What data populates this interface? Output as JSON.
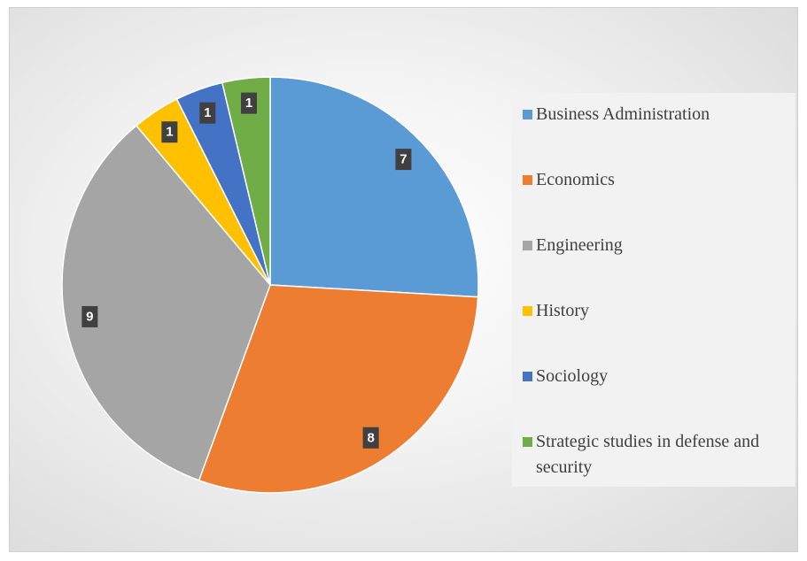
{
  "chart_data": {
    "type": "pie",
    "categories": [
      "Business Administration",
      "Economics",
      "Engineering",
      "History",
      "Sociology",
      "Strategic studies in defense and security"
    ],
    "values": [
      7,
      8,
      9,
      1,
      1,
      1
    ],
    "colors": [
      "#5b9bd5",
      "#ed7d31",
      "#a5a5a5",
      "#ffc000",
      "#4472c4",
      "#70ad47"
    ],
    "legend": "right"
  }
}
